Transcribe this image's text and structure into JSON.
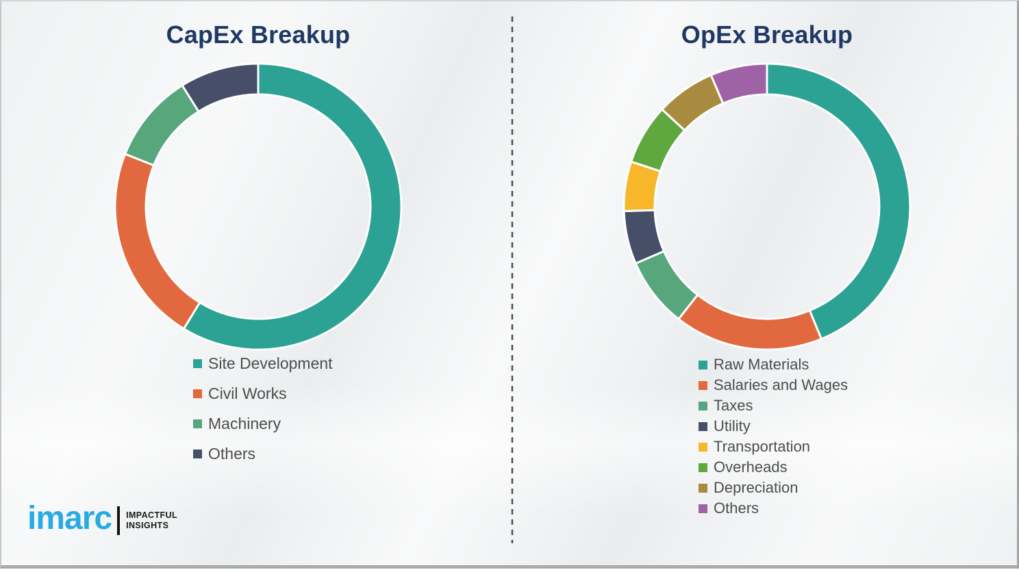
{
  "page": {
    "background_color": "#EFF1F2",
    "frame_border_color": "#A8AAAC",
    "divider_color": "#4D4D4D",
    "title_color": "#1F3864",
    "legend_text_color": "#4D4D4D"
  },
  "chart_data": [
    {
      "type": "pie",
      "variant": "donut",
      "title": "CapEx Breakup",
      "categories": [
        "Site Development",
        "Civil Works",
        "Machinery",
        "Others"
      ],
      "values": [
        58.7,
        22.3,
        10.1,
        8.9
      ],
      "colors": [
        "#2BA294",
        "#E2693F",
        "#57A67C",
        "#474E68"
      ],
      "unit": "percent_share",
      "start_angle_deg": 0,
      "direction": "clockwise",
      "legend_position": "bottom-left",
      "data_labels": false
    },
    {
      "type": "pie",
      "variant": "donut",
      "title": "OpEx Breakup",
      "categories": [
        "Raw Materials",
        "Salaries and Wages",
        "Taxes",
        "Utility",
        "Transportation",
        "Overheads",
        "Depreciation",
        "Others"
      ],
      "values": [
        43.8,
        16.8,
        7.9,
        6.0,
        5.6,
        6.8,
        6.7,
        6.4
      ],
      "colors": [
        "#2BA294",
        "#E2693F",
        "#57A67C",
        "#474E68",
        "#F8B62B",
        "#5FA83F",
        "#A98B3F",
        "#9F62A5"
      ],
      "unit": "percent_share",
      "start_angle_deg": 0,
      "direction": "clockwise",
      "legend_position": "bottom-left",
      "data_labels": false
    }
  ],
  "logo": {
    "brand": "imarc",
    "tagline_line1": "IMPACTFUL",
    "tagline_line2": "INSIGHTS",
    "brand_color": "#29ABE2",
    "tagline_color": "#1A1A1A"
  }
}
